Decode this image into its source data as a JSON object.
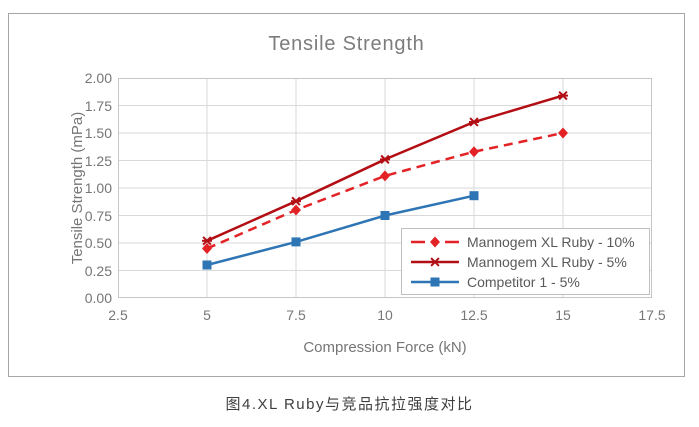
{
  "page": {
    "caption": "图4.XL Ruby与竞品抗拉强度对比"
  },
  "colors": {
    "grid": "#d9d9d9",
    "plot_border": "#c6c6c6",
    "tick_text": "#767676",
    "title_text": "#7c7c7c",
    "legend_text": "#595959",
    "legend_border": "#bfbfbf",
    "frame_border": "#a6a6a6"
  },
  "chart_data": {
    "type": "line",
    "title": "Tensile Strength",
    "xlabel": "Compression Force (kN)",
    "ylabel": "Tensile Strength (mPa)",
    "xlim": [
      2.5,
      17.5
    ],
    "ylim": [
      0,
      2.0
    ],
    "x_ticks": [
      "2.5",
      "5",
      "7.5",
      "10",
      "12.5",
      "15",
      "17.5"
    ],
    "y_ticks": [
      "0.00",
      "0.25",
      "0.50",
      "0.75",
      "1.00",
      "1.25",
      "1.50",
      "1.75",
      "2.00"
    ],
    "grid": true,
    "legend_position": "inside-bottom-right",
    "series": [
      {
        "name": "Mannogem XL Ruby - 10%",
        "x": [
          5,
          7.5,
          10,
          12.5,
          15
        ],
        "values": [
          0.45,
          0.8,
          1.11,
          1.33,
          1.5
        ],
        "color": "#e32226",
        "dash": "dashed",
        "marker": "diamond"
      },
      {
        "name": "Mannogem XL Ruby - 5%",
        "x": [
          5,
          7.5,
          10,
          12.5,
          15
        ],
        "values": [
          0.52,
          0.88,
          1.26,
          1.6,
          1.84
        ],
        "color": "#b20e14",
        "dash": "solid",
        "marker": "asterisk"
      },
      {
        "name": "Competitor 1 - 5%",
        "x": [
          5,
          7.5,
          10,
          12.5
        ],
        "values": [
          0.3,
          0.51,
          0.75,
          0.93
        ],
        "color": "#2e75b6",
        "dash": "solid",
        "marker": "square"
      }
    ]
  }
}
